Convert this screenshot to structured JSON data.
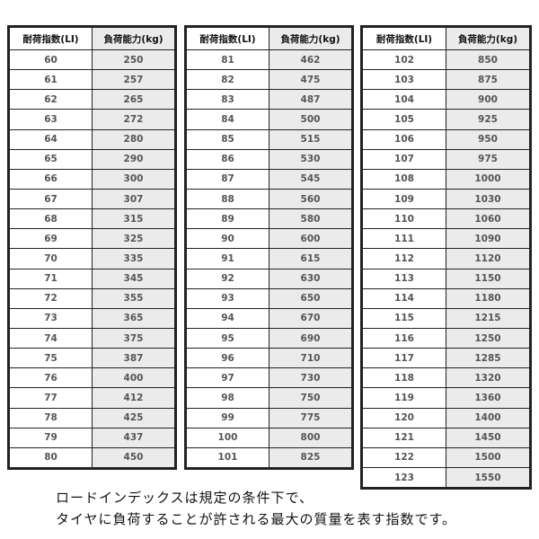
{
  "header": {
    "load_index": "耐荷指数(LI)",
    "load_capacity": "負荷能力(kg)"
  },
  "tables": [
    {
      "rows": [
        [
          "60",
          "250"
        ],
        [
          "61",
          "257"
        ],
        [
          "62",
          "265"
        ],
        [
          "63",
          "272"
        ],
        [
          "64",
          "280"
        ],
        [
          "65",
          "290"
        ],
        [
          "66",
          "300"
        ],
        [
          "67",
          "307"
        ],
        [
          "68",
          "315"
        ],
        [
          "69",
          "325"
        ],
        [
          "70",
          "335"
        ],
        [
          "71",
          "345"
        ],
        [
          "72",
          "355"
        ],
        [
          "73",
          "365"
        ],
        [
          "74",
          "375"
        ],
        [
          "75",
          "387"
        ],
        [
          "76",
          "400"
        ],
        [
          "77",
          "412"
        ],
        [
          "78",
          "425"
        ],
        [
          "79",
          "437"
        ],
        [
          "80",
          "450"
        ]
      ]
    },
    {
      "rows": [
        [
          "81",
          "462"
        ],
        [
          "82",
          "475"
        ],
        [
          "83",
          "487"
        ],
        [
          "84",
          "500"
        ],
        [
          "85",
          "515"
        ],
        [
          "86",
          "530"
        ],
        [
          "87",
          "545"
        ],
        [
          "88",
          "560"
        ],
        [
          "89",
          "580"
        ],
        [
          "90",
          "600"
        ],
        [
          "91",
          "615"
        ],
        [
          "92",
          "630"
        ],
        [
          "93",
          "650"
        ],
        [
          "94",
          "670"
        ],
        [
          "95",
          "690"
        ],
        [
          "96",
          "710"
        ],
        [
          "97",
          "730"
        ],
        [
          "98",
          "750"
        ],
        [
          "99",
          "775"
        ],
        [
          "100",
          "800"
        ],
        [
          "101",
          "825"
        ]
      ]
    },
    {
      "rows": [
        [
          "102",
          "850"
        ],
        [
          "103",
          "875"
        ],
        [
          "104",
          "900"
        ],
        [
          "105",
          "925"
        ],
        [
          "106",
          "950"
        ],
        [
          "107",
          "975"
        ],
        [
          "108",
          "1000"
        ],
        [
          "109",
          "1030"
        ],
        [
          "110",
          "1060"
        ],
        [
          "111",
          "1090"
        ],
        [
          "112",
          "1120"
        ],
        [
          "113",
          "1150"
        ],
        [
          "114",
          "1180"
        ],
        [
          "115",
          "1215"
        ],
        [
          "116",
          "1250"
        ],
        [
          "117",
          "1285"
        ],
        [
          "118",
          "1320"
        ],
        [
          "119",
          "1360"
        ],
        [
          "120",
          "1400"
        ],
        [
          "121",
          "1450"
        ],
        [
          "122",
          "1500"
        ],
        [
          "123",
          "1550"
        ]
      ]
    }
  ],
  "caption": {
    "line1": "ロードインデックスは規定の条件下で、",
    "line2": "タイヤに負荷することが許される最大の質量を表す指数です。"
  }
}
